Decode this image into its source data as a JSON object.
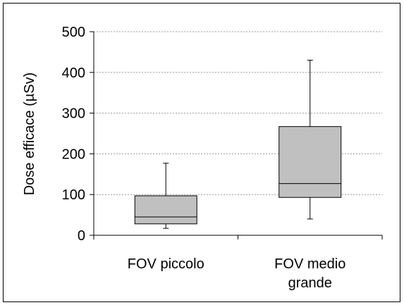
{
  "chart_data": {
    "type": "boxplot",
    "ylabel": "Dose efficace (µSv)",
    "ylim": [
      0,
      500
    ],
    "yticks": [
      0,
      100,
      200,
      300,
      400,
      500
    ],
    "grid": true,
    "categories": [
      {
        "label_lines": [
          "FOV piccolo"
        ],
        "min": 17,
        "q1": 28,
        "median": 45,
        "q3": 97,
        "max": 177
      },
      {
        "label_lines": [
          "FOV medio",
          "grande"
        ],
        "min": 40,
        "q1": 93,
        "median": 127,
        "q3": 267,
        "max": 430
      }
    ],
    "colors": {
      "box_fill": "#c0c0c0",
      "grid": "#999999",
      "line": "#000000"
    }
  }
}
